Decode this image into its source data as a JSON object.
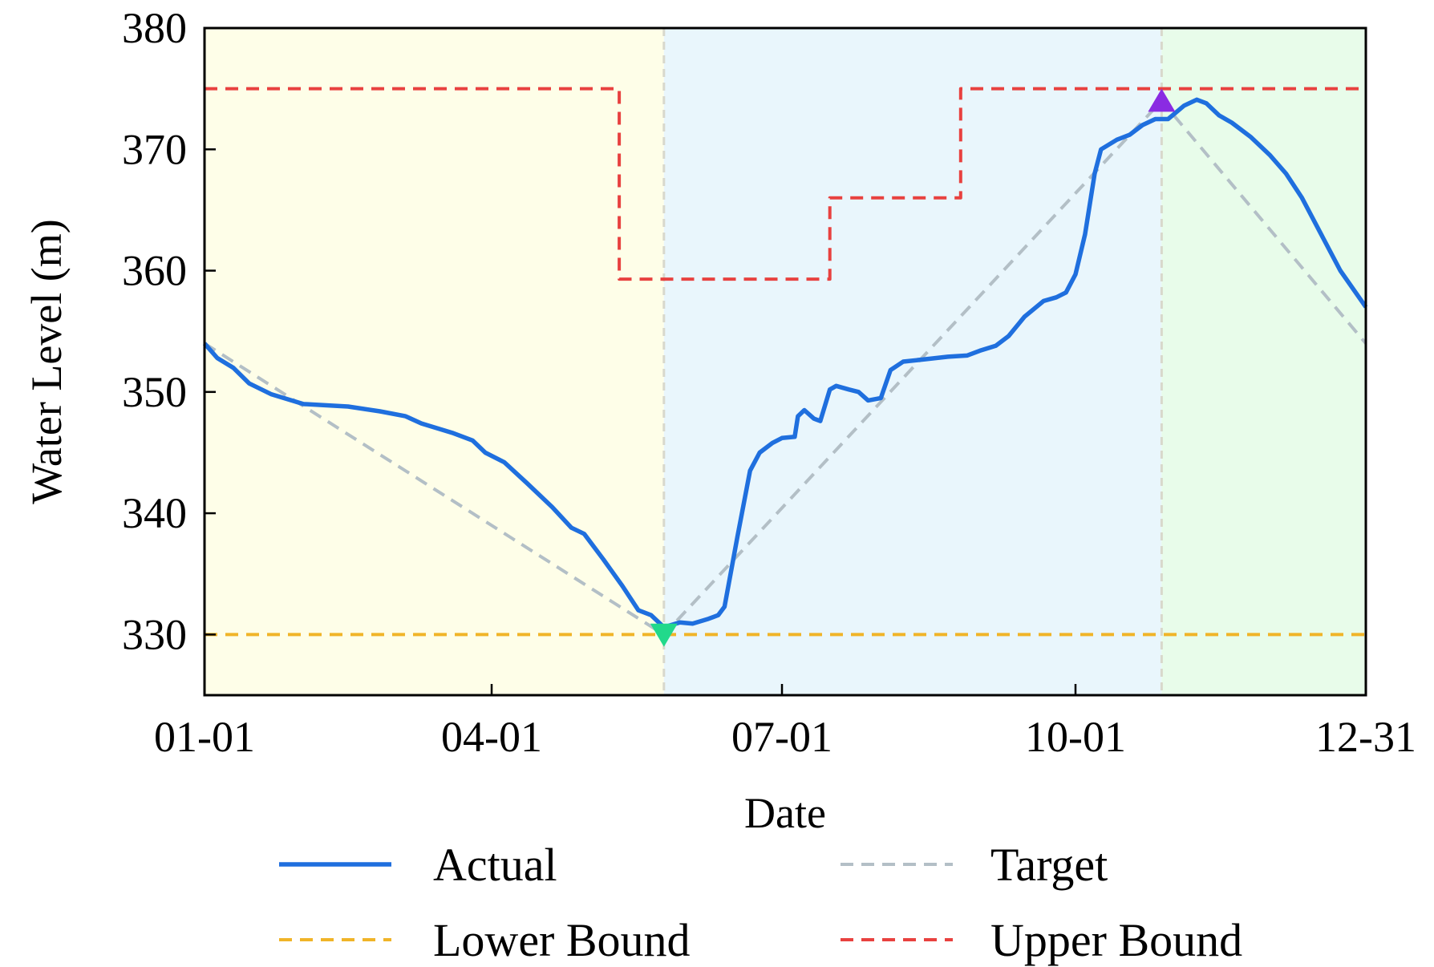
{
  "chart_data": {
    "type": "line",
    "title": "",
    "xlabel": "Date",
    "ylabel": "Water Level (m)",
    "x_axis": {
      "type": "date",
      "range": [
        "01-01",
        "12-31"
      ],
      "ticks": [
        "01-01",
        "04-01",
        "07-01",
        "10-01",
        "12-31"
      ]
    },
    "y_axis": {
      "range": [
        325,
        380
      ],
      "ticks": [
        330,
        340,
        350,
        360,
        370,
        380
      ]
    },
    "grid": false,
    "legend": {
      "placement": "bottom",
      "columns": 2,
      "entries": [
        "Actual",
        "Target",
        "Lower Bound",
        "Upper Bound"
      ]
    },
    "regions": [
      {
        "from": "01-01",
        "to": "05-25",
        "color": "#fefee8"
      },
      {
        "from": "05-25",
        "to": "10-28",
        "color": "#e9f6fc"
      },
      {
        "from": "10-28",
        "to": "12-31",
        "color": "#e8fcea"
      }
    ],
    "vertical_markers": [
      "05-25",
      "10-28"
    ],
    "series": [
      {
        "name": "Actual",
        "color": "#1f6fde",
        "style": "solid",
        "points": [
          [
            "01-01",
            354.0
          ],
          [
            "01-05",
            352.8
          ],
          [
            "01-10",
            352.0
          ],
          [
            "01-15",
            350.7
          ],
          [
            "01-22",
            349.8
          ],
          [
            "02-01",
            349.0
          ],
          [
            "02-15",
            348.8
          ],
          [
            "02-25",
            348.4
          ],
          [
            "03-05",
            348.0
          ],
          [
            "03-10",
            347.4
          ],
          [
            "03-20",
            346.6
          ],
          [
            "03-26",
            346.0
          ],
          [
            "03-30",
            345.0
          ],
          [
            "04-05",
            344.2
          ],
          [
            "04-12",
            342.5
          ],
          [
            "04-20",
            340.5
          ],
          [
            "04-26",
            338.8
          ],
          [
            "04-30",
            338.3
          ],
          [
            "05-06",
            336.2
          ],
          [
            "05-12",
            334.0
          ],
          [
            "05-17",
            332.0
          ],
          [
            "05-21",
            331.6
          ],
          [
            "05-25",
            330.6
          ],
          [
            "05-30",
            331.0
          ],
          [
            "06-03",
            330.9
          ],
          [
            "06-08",
            331.3
          ],
          [
            "06-11",
            331.6
          ],
          [
            "06-13",
            332.3
          ],
          [
            "06-17",
            338.0
          ],
          [
            "06-21",
            343.5
          ],
          [
            "06-24",
            345.0
          ],
          [
            "06-28",
            345.8
          ],
          [
            "07-01",
            346.2
          ],
          [
            "07-05",
            346.3
          ],
          [
            "07-06",
            348.0
          ],
          [
            "07-08",
            348.5
          ],
          [
            "07-11",
            347.8
          ],
          [
            "07-13",
            347.6
          ],
          [
            "07-16",
            350.2
          ],
          [
            "07-18",
            350.5
          ],
          [
            "07-22",
            350.2
          ],
          [
            "07-25",
            350.0
          ],
          [
            "07-28",
            349.3
          ],
          [
            "08-01",
            349.5
          ],
          [
            "08-04",
            351.8
          ],
          [
            "08-08",
            352.5
          ],
          [
            "08-15",
            352.7
          ],
          [
            "08-22",
            352.9
          ],
          [
            "08-28",
            353.0
          ],
          [
            "09-01",
            353.4
          ],
          [
            "09-06",
            353.8
          ],
          [
            "09-10",
            354.6
          ],
          [
            "09-15",
            356.2
          ],
          [
            "09-21",
            357.5
          ],
          [
            "09-25",
            357.8
          ],
          [
            "09-28",
            358.2
          ],
          [
            "10-01",
            359.7
          ],
          [
            "10-04",
            363.0
          ],
          [
            "10-07",
            368.0
          ],
          [
            "10-09",
            370.0
          ],
          [
            "10-14",
            370.8
          ],
          [
            "10-18",
            371.2
          ],
          [
            "10-22",
            372.0
          ],
          [
            "10-26",
            372.5
          ],
          [
            "10-30",
            372.5
          ],
          [
            "11-04",
            373.6
          ],
          [
            "11-08",
            374.1
          ],
          [
            "11-11",
            373.8
          ],
          [
            "11-15",
            372.8
          ],
          [
            "11-19",
            372.2
          ],
          [
            "11-25",
            371.0
          ],
          [
            "12-01",
            369.5
          ],
          [
            "12-06",
            368.0
          ],
          [
            "12-11",
            366.0
          ],
          [
            "12-17",
            363.0
          ],
          [
            "12-23",
            360.0
          ],
          [
            "12-31",
            357.0
          ]
        ]
      },
      {
        "name": "Target",
        "color": "#b3bfc6",
        "style": "dashed",
        "points": [
          [
            "01-01",
            354.0
          ],
          [
            "05-25",
            330.0
          ],
          [
            "10-28",
            374.0
          ],
          [
            "12-31",
            354.0
          ]
        ]
      },
      {
        "name": "Lower Bound",
        "color": "#f0b428",
        "style": "dashed",
        "points": [
          [
            "01-01",
            330.0
          ],
          [
            "12-31",
            330.0
          ]
        ]
      },
      {
        "name": "Upper Bound",
        "color": "#e8413f",
        "style": "dashed",
        "step": true,
        "points": [
          [
            "01-01",
            375.0
          ],
          [
            "05-11",
            375.0
          ],
          [
            "05-11",
            359.3
          ],
          [
            "07-16",
            359.3
          ],
          [
            "07-16",
            366.0
          ],
          [
            "08-26",
            366.0
          ],
          [
            "08-26",
            375.0
          ],
          [
            "12-31",
            375.0
          ]
        ]
      }
    ],
    "markers": [
      {
        "x": "05-25",
        "y": 330.0,
        "shape": "triangle-down",
        "color": "#22d98b"
      },
      {
        "x": "10-28",
        "y": 374.0,
        "shape": "triangle-up",
        "color": "#8a2be2"
      }
    ]
  }
}
